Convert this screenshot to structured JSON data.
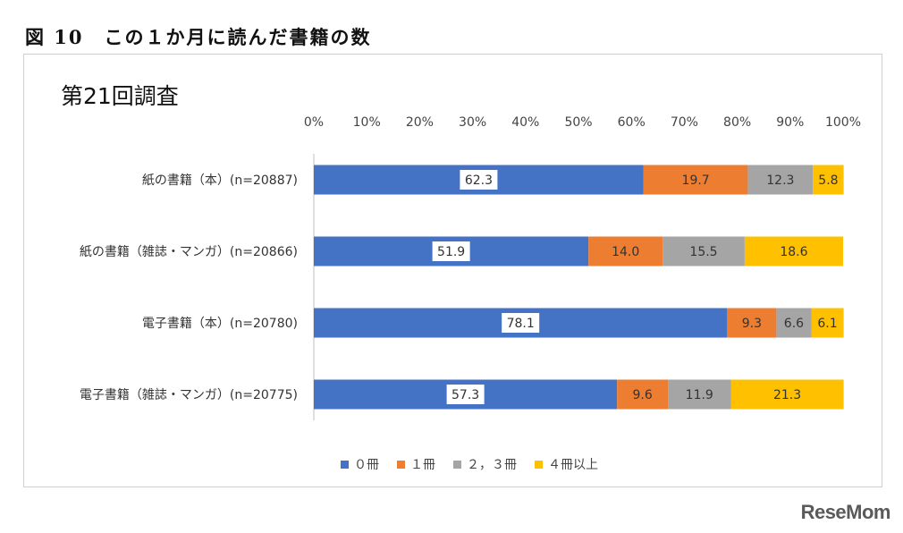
{
  "figure_title": "図 10　この１か月に読んだ書籍の数",
  "survey_label": "第21回調査",
  "watermark": "ReseMom",
  "colors": {
    "zero": "#4472c4",
    "one": "#ed7d31",
    "two_three": "#a5a5a5",
    "four_plus": "#ffc000"
  },
  "chart_data": {
    "type": "bar",
    "orientation": "horizontal",
    "stacked": "percent",
    "categories": [
      "紙の書籍（本）(n=20887)",
      "紙の書籍（雑誌・マンガ）(n=20866)",
      "電子書籍（本）(n=20780)",
      "電子書籍（雑誌・マンガ）(n=20775)"
    ],
    "series": [
      {
        "name": "０冊",
        "values": [
          62.3,
          51.9,
          78.1,
          57.3
        ]
      },
      {
        "name": "１冊",
        "values": [
          19.7,
          14.0,
          9.3,
          9.6
        ]
      },
      {
        "name": "２，３冊",
        "values": [
          12.3,
          15.5,
          6.6,
          11.9
        ]
      },
      {
        "name": "４冊以上",
        "values": [
          5.8,
          18.6,
          6.1,
          21.3
        ]
      }
    ],
    "x_ticks": [
      "0%",
      "10%",
      "20%",
      "30%",
      "40%",
      "50%",
      "60%",
      "70%",
      "80%",
      "90%",
      "100%"
    ],
    "xlim": [
      0,
      100
    ],
    "axis_position": "top",
    "legend_position": "bottom",
    "grid": false
  }
}
